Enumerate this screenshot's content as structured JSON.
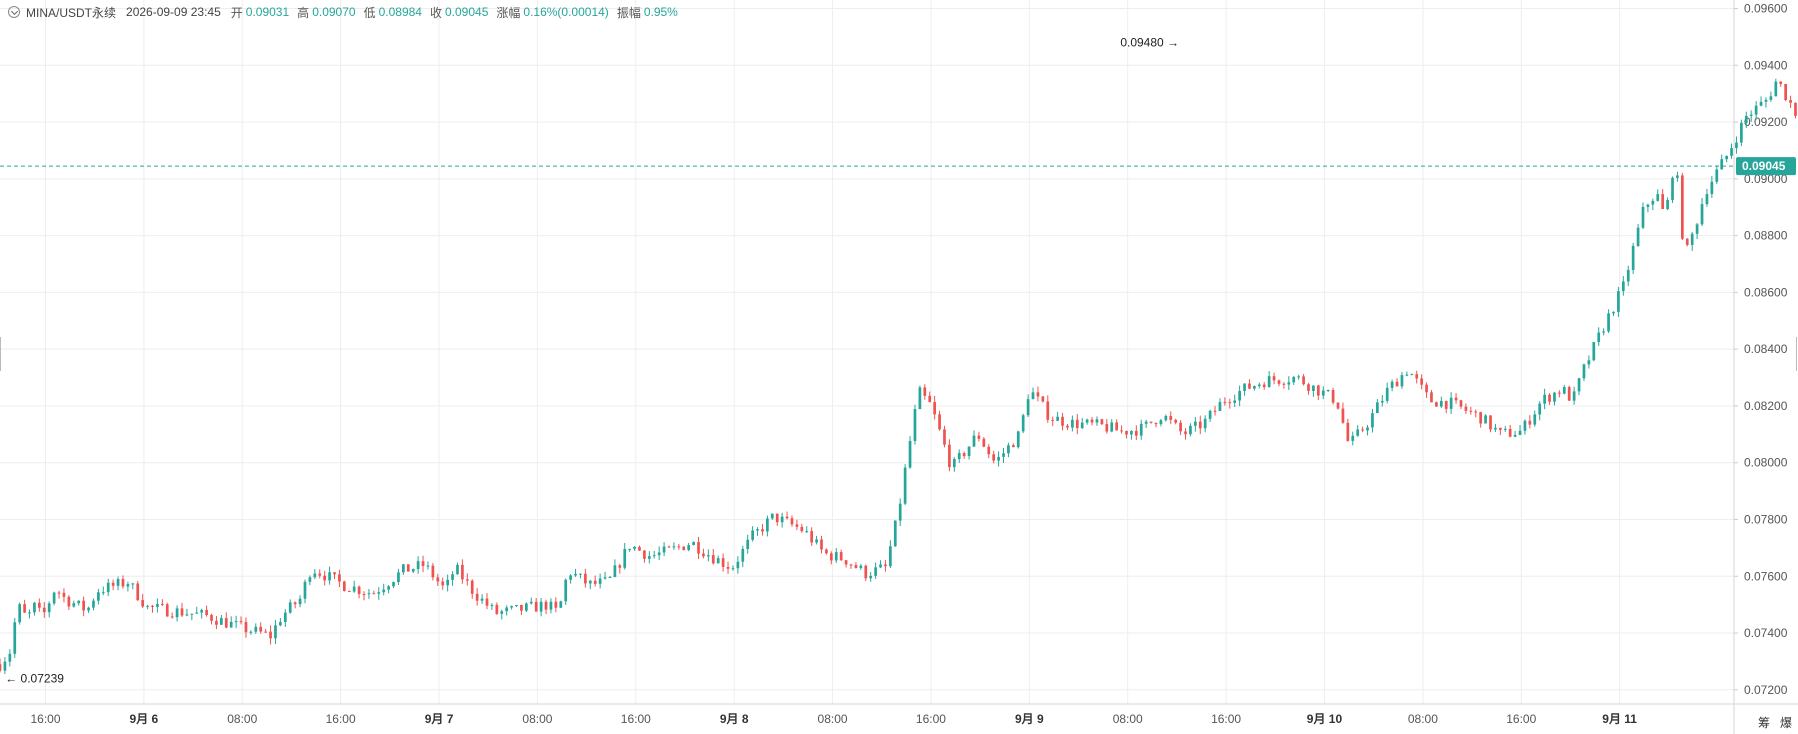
{
  "header": {
    "symbol": "MINA/USDT永续",
    "time": "2026-09-09 23:45",
    "open_label": "开",
    "open_value": "0.09031",
    "high_label": "高",
    "high_value": "0.09070",
    "low_label": "低",
    "low_value": "0.08984",
    "close_label": "收",
    "close_value": "0.09045",
    "change_label": "涨幅",
    "change_value": "0.16%(0.00014)",
    "amplitude_label": "振幅",
    "amplitude_value": "0.95%"
  },
  "colors": {
    "up": "#26a69a",
    "down": "#ef5350",
    "price_line": "#26a69a",
    "grid": "#eeeeee"
  },
  "bottom_controls": {
    "chip_label": "筹",
    "burst_label": "爆"
  },
  "chart_data": {
    "type": "candlestick",
    "title": "",
    "interval": "15m",
    "ylim": [
      0.0715,
      0.0963
    ],
    "y_ticks": [
      "0.09600",
      "0.09400",
      "0.09200",
      "0.09000",
      "0.08800",
      "0.08600",
      "0.08400",
      "0.08200",
      "0.08000",
      "0.07800",
      "0.07600",
      "0.07400",
      "0.07200"
    ],
    "x_ticks": [
      "16:00",
      "9月 6",
      "08:00",
      "16:00",
      "9月 7",
      "08:00",
      "16:00",
      "9月 8",
      "08:00",
      "16:00",
      "9月 9",
      "08:00",
      "16:00",
      "9月 10",
      "08:00",
      "16:00",
      "9月 11"
    ],
    "x_ticks_bold": [
      "9月 6",
      "9月 7",
      "9月 8",
      "9月 9",
      "9月 10",
      "9月 11"
    ],
    "x_range_hours": [
      -3.7,
      137.3
    ],
    "first_tick_hours": 0,
    "tick_step_hours": 8,
    "current_price": "0.09045",
    "last_candle_hours": 95.75,
    "annotations": [
      {
        "label": "0.09480",
        "value": 0.0948,
        "at_hours": 92.5,
        "side": "left"
      },
      {
        "label": "0.07239",
        "value": 0.07239,
        "at_hours": -3.6,
        "side": "right"
      }
    ],
    "anchors": [
      [
        -3.7,
        0.0729
      ],
      [
        -2.8,
        0.0734
      ],
      [
        -2.3,
        0.075
      ],
      [
        -1.5,
        0.0745
      ],
      [
        -0.8,
        0.075
      ],
      [
        -0.3,
        0.0745
      ],
      [
        0.8,
        0.0756
      ],
      [
        1.6,
        0.0752
      ],
      [
        3.4,
        0.0748
      ],
      [
        4.2,
        0.0755
      ],
      [
        6.7,
        0.0758
      ],
      [
        8.3,
        0.0749
      ],
      [
        11.7,
        0.0747
      ],
      [
        13.2,
        0.0746
      ],
      [
        15.8,
        0.0742
      ],
      [
        18.3,
        0.0739
      ],
      [
        19.2,
        0.0746
      ],
      [
        20.7,
        0.0752
      ],
      [
        21.6,
        0.0763
      ],
      [
        24.2,
        0.0757
      ],
      [
        26.6,
        0.0754
      ],
      [
        29.1,
        0.0762
      ],
      [
        30.8,
        0.0764
      ],
      [
        32.5,
        0.0755
      ],
      [
        33.3,
        0.0763
      ],
      [
        34.9,
        0.0754
      ],
      [
        36.6,
        0.0747
      ],
      [
        38.3,
        0.0748
      ],
      [
        40.8,
        0.075
      ],
      [
        41.7,
        0.0747
      ],
      [
        42.5,
        0.0762
      ],
      [
        44.2,
        0.0757
      ],
      [
        45.8,
        0.0758
      ],
      [
        47.5,
        0.0771
      ],
      [
        49.2,
        0.0767
      ],
      [
        50.8,
        0.0769
      ],
      [
        52.5,
        0.0772
      ],
      [
        54.2,
        0.0767
      ],
      [
        55.8,
        0.0763
      ],
      [
        57.5,
        0.0774
      ],
      [
        59.2,
        0.0781
      ],
      [
        61.7,
        0.0776
      ],
      [
        63.3,
        0.0768
      ],
      [
        65.0,
        0.0766
      ],
      [
        66.7,
        0.0761
      ],
      [
        68.3,
        0.0763
      ],
      [
        69.3,
        0.0781
      ],
      [
        70.0,
        0.08
      ],
      [
        71.0,
        0.0825
      ],
      [
        72.0,
        0.082
      ],
      [
        73.7,
        0.0798
      ],
      [
        75.8,
        0.081
      ],
      [
        77.2,
        0.08
      ],
      [
        79.2,
        0.081
      ],
      [
        80.0,
        0.0826
      ],
      [
        81.7,
        0.0816
      ],
      [
        83.3,
        0.0814
      ],
      [
        85.8,
        0.0813
      ],
      [
        87.5,
        0.0811
      ],
      [
        89.2,
        0.0812
      ],
      [
        90.8,
        0.0817
      ],
      [
        92.5,
        0.081
      ],
      [
        94.2,
        0.0814
      ],
      [
        95.8,
        0.0822
      ],
      [
        97.5,
        0.0826
      ],
      [
        99.2,
        0.0829
      ],
      [
        101.7,
        0.083
      ],
      [
        103.3,
        0.0826
      ],
      [
        105.0,
        0.0822
      ],
      [
        106.0,
        0.0806
      ],
      [
        107.5,
        0.0814
      ],
      [
        109.2,
        0.0826
      ],
      [
        110.8,
        0.0833
      ],
      [
        112.5,
        0.0822
      ],
      [
        114.2,
        0.0821
      ],
      [
        116.7,
        0.0816
      ],
      [
        118.3,
        0.081
      ],
      [
        120.0,
        0.0811
      ],
      [
        121.7,
        0.0822
      ],
      [
        123.3,
        0.0826
      ],
      [
        124.2,
        0.0822
      ],
      [
        125.0,
        0.0832
      ],
      [
        126.7,
        0.0848
      ],
      [
        128.3,
        0.0862
      ],
      [
        129.2,
        0.0877
      ],
      [
        130.0,
        0.089
      ],
      [
        131.0,
        0.0895
      ],
      [
        131.7,
        0.0886
      ],
      [
        132.5,
        0.0908
      ],
      [
        133.3,
        0.0872
      ],
      [
        134.2,
        0.0884
      ],
      [
        135.0,
        0.0896
      ],
      [
        136.7,
        0.0908
      ],
      [
        138.3,
        0.0922
      ],
      [
        140.0,
        0.0928
      ],
      [
        140.8,
        0.0935
      ],
      [
        141.7,
        0.0928
      ],
      [
        142.5,
        0.0922
      ],
      [
        143.3,
        0.0912
      ],
      [
        144.2,
        0.0904
      ]
    ]
  }
}
